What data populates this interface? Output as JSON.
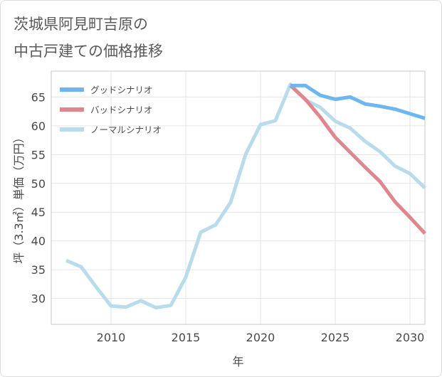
{
  "title_lines": [
    "茨城県阿見町吉原の",
    "中古戸建ての価格推移"
  ],
  "chart_data": {
    "type": "line",
    "xlabel": "年",
    "ylabel": "坪（3.3㎡）単価（万円）",
    "xlim": [
      2006,
      2031
    ],
    "ylim": [
      25.5,
      69.5
    ],
    "xticks": [
      2010,
      2015,
      2020,
      2025,
      2030
    ],
    "yticks": [
      30,
      35,
      40,
      45,
      50,
      55,
      60,
      65
    ],
    "grid": true,
    "legend_position": "top-left",
    "series": [
      {
        "name": "グッドシナリオ",
        "color": "#6db6ef",
        "x": [
          2022,
          2023,
          2024,
          2025,
          2026,
          2027,
          2028,
          2029,
          2030,
          2031
        ],
        "values": [
          67.0,
          67.0,
          65.3,
          64.6,
          65.0,
          63.8,
          63.4,
          62.9,
          62.1,
          61.3
        ]
      },
      {
        "name": "バッドシナリオ",
        "color": "#e0868e",
        "x": [
          2022,
          2023,
          2024,
          2025,
          2026,
          2027,
          2028,
          2029,
          2030,
          2031
        ],
        "values": [
          67.0,
          64.6,
          61.5,
          58.0,
          55.4,
          52.8,
          50.3,
          46.8,
          44.1,
          41.3
        ]
      },
      {
        "name": "ノーマルシナリオ",
        "color": "#b9dcec",
        "x": [
          2007,
          2008,
          2009,
          2010,
          2011,
          2012,
          2013,
          2014,
          2015,
          2016,
          2017,
          2018,
          2019,
          2020,
          2021,
          2022,
          2023,
          2024,
          2025,
          2026,
          2027,
          2028,
          2029,
          2030,
          2031
        ],
        "values": [
          36.6,
          35.5,
          32.0,
          28.7,
          28.5,
          29.6,
          28.4,
          28.8,
          33.7,
          41.5,
          42.8,
          46.7,
          55.0,
          60.2,
          60.9,
          67.2,
          64.5,
          63.2,
          60.8,
          59.6,
          57.3,
          55.5,
          53.0,
          51.7,
          49.2
        ]
      }
    ]
  }
}
